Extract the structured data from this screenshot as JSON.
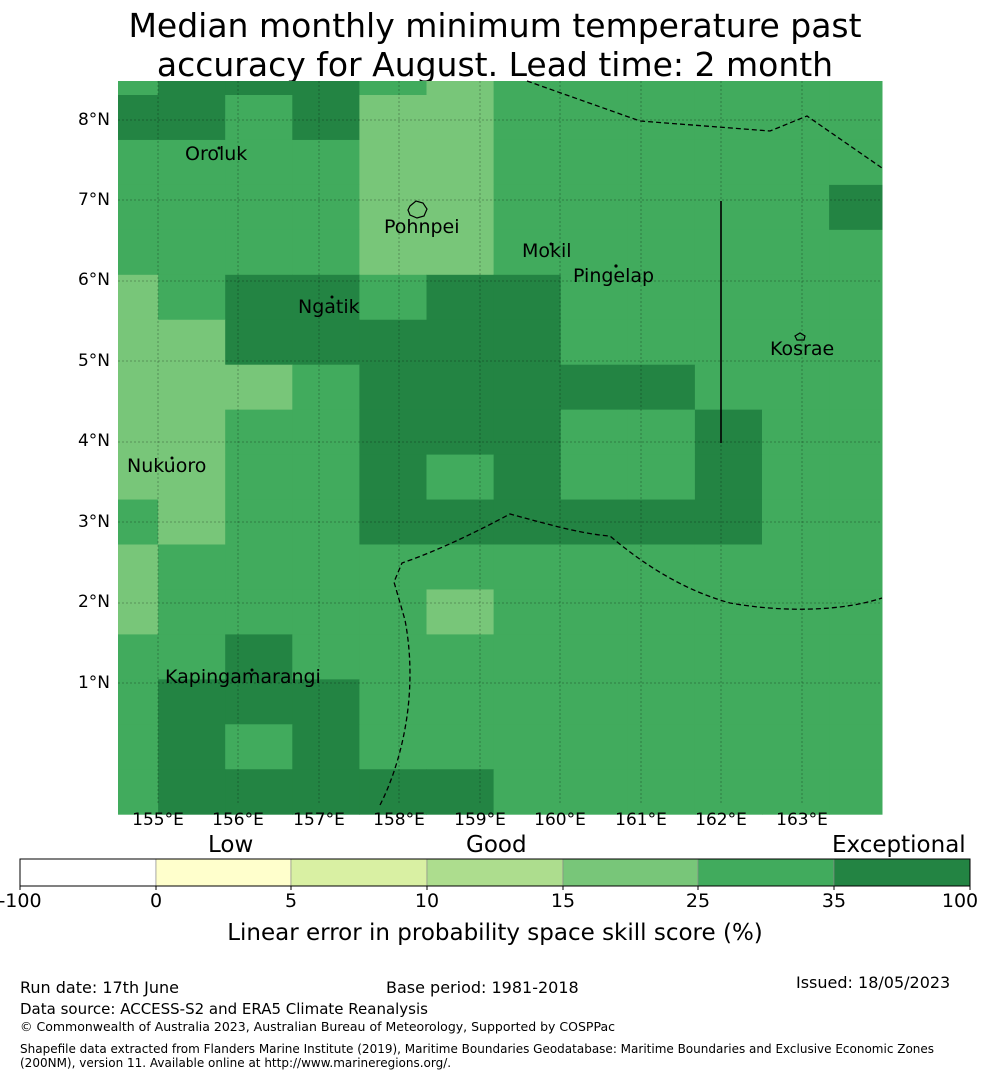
{
  "title": {
    "line1": "Median monthly minimum temperature past",
    "line2": "accuracy for August. Lead time: 2 month"
  },
  "map": {
    "lat_labels": [
      "8°N",
      "7°N",
      "6°N",
      "5°N",
      "4°N",
      "3°N",
      "2°N",
      "1°N"
    ],
    "lon_labels": [
      "155°E",
      "156°E",
      "157°E",
      "158°E",
      "159°E",
      "160°E",
      "161°E",
      "162°E",
      "163°E"
    ],
    "places": [
      "Oroluk",
      "Pohnpei",
      "Mokil",
      "Pingelap",
      "Ngatik",
      "Kosrae",
      "Nukuoro",
      "Kapingamarangi"
    ],
    "grid_classes": [
      [
        2,
        3,
        3,
        3,
        2,
        1,
        2,
        2,
        2,
        2,
        2,
        2,
        2,
        2,
        2,
        2
      ],
      [
        3,
        3,
        2,
        3,
        1,
        1,
        2,
        2,
        2,
        2,
        2,
        2,
        2,
        2,
        2,
        2
      ],
      [
        2,
        2,
        2,
        2,
        1,
        1,
        2,
        2,
        2,
        2,
        2,
        2,
        2,
        3,
        2,
        2
      ],
      [
        2,
        2,
        2,
        2,
        1,
        1,
        2,
        2,
        2,
        2,
        2,
        3,
        3,
        2,
        2,
        2
      ],
      [
        2,
        2,
        2,
        2,
        1,
        1,
        2,
        2,
        2,
        2,
        2,
        2,
        3,
        2,
        1,
        2
      ],
      [
        1,
        2,
        3,
        3,
        2,
        3,
        3,
        2,
        2,
        2,
        2,
        2,
        2,
        2,
        2,
        2
      ],
      [
        1,
        1,
        3,
        3,
        3,
        3,
        3,
        2,
        2,
        2,
        2,
        2,
        2,
        2,
        2,
        2
      ],
      [
        1,
        1,
        1,
        2,
        3,
        3,
        3,
        3,
        3,
        2,
        2,
        2,
        2,
        2,
        2,
        2
      ],
      [
        1,
        1,
        2,
        2,
        3,
        3,
        3,
        2,
        2,
        3,
        2,
        2,
        1,
        2,
        2,
        2
      ],
      [
        1,
        1,
        2,
        2,
        3,
        2,
        3,
        2,
        2,
        3,
        2,
        2,
        1,
        2,
        2,
        3
      ],
      [
        2,
        1,
        2,
        2,
        3,
        3,
        3,
        3,
        3,
        3,
        2,
        2,
        2,
        2,
        2,
        2
      ],
      [
        1,
        2,
        2,
        2,
        2,
        2,
        2,
        2,
        2,
        2,
        2,
        2,
        2,
        2,
        2,
        2
      ],
      [
        1,
        2,
        2,
        2,
        2,
        1,
        2,
        2,
        2,
        2,
        2,
        2,
        2,
        2,
        2,
        2
      ],
      [
        2,
        2,
        3,
        2,
        2,
        2,
        2,
        2,
        2,
        2,
        2,
        2,
        2,
        2,
        2,
        2
      ],
      [
        2,
        3,
        3,
        3,
        2,
        2,
        2,
        2,
        2,
        2,
        2,
        2,
        2,
        2,
        2,
        2
      ],
      [
        2,
        3,
        2,
        3,
        2,
        2,
        2,
        2,
        2,
        2,
        2,
        2,
        2,
        2,
        2,
        2
      ],
      [
        2,
        3,
        3,
        3,
        3,
        3,
        2,
        2,
        2,
        2,
        2,
        2,
        2,
        2,
        2,
        2
      ]
    ]
  },
  "colorbar": {
    "category_labels": [
      "Low",
      "Good",
      "Exceptional"
    ],
    "ticks": [
      "-100",
      "0",
      "5",
      "10",
      "15",
      "25",
      "35",
      "100"
    ],
    "colors": [
      "#ffffff",
      "#ffffcc",
      "#d9f0a3",
      "#addd8e",
      "#78c679",
      "#41ab5d",
      "#238443"
    ],
    "title": "Linear error in probability space skill score (%)"
  },
  "footer": {
    "run_date": "Run date: 17th June",
    "base_period": "Base period: 1981-2018",
    "issued": "Issued: 18/05/2023",
    "data_source": "Data source: ACCESS-S2 and ERA5 Climate Reanalysis",
    "copyright": "© Commonwealth of Australia 2023, Australian Bureau of Meteorology, Supported by COSPPac",
    "shapefile_line1": "Shapefile data extracted from Flanders Marine Institute (2019), Maritime Boundaries Geodatabase: Maritime Boundaries and Exclusive Economic Zones",
    "shapefile_line2": "(200NM), version 11. Available online at http://www.marineregions.org/."
  }
}
